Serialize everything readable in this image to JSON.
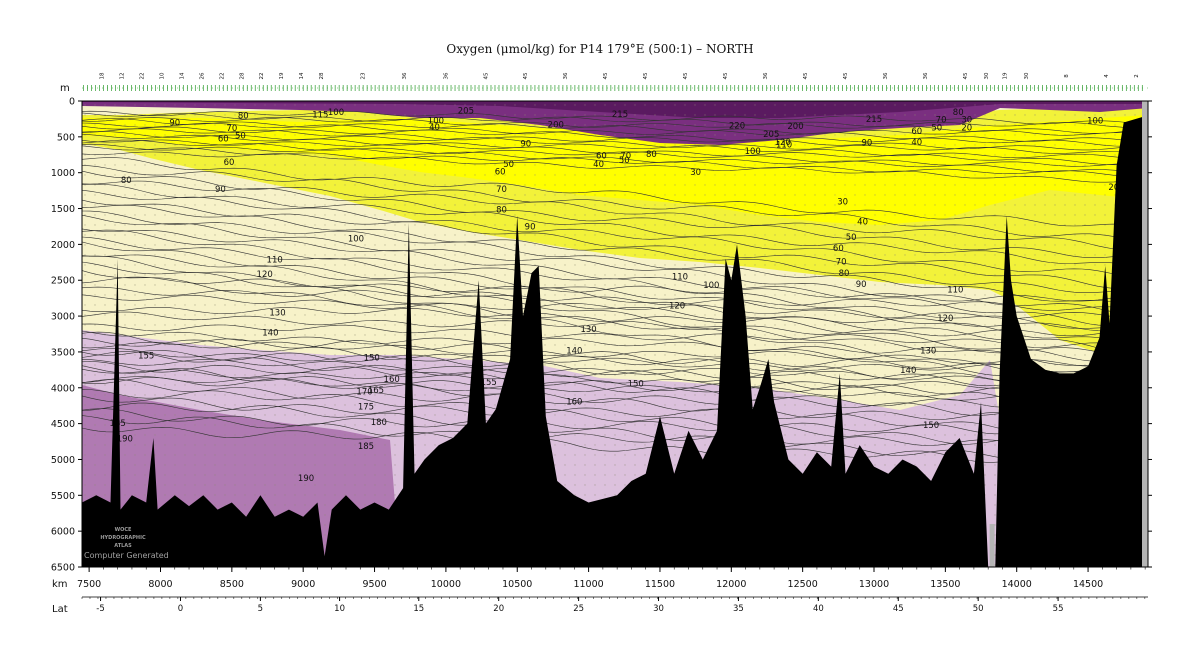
{
  "chart_data": {
    "type": "area",
    "title": "Oxygen (μmol/kg) for P14 179°E (500:1) – NORTH",
    "depth_unit_label": "m",
    "distance_unit_label": "km",
    "lat_label": "Lat",
    "ylim": [
      0,
      6500
    ],
    "xlim": [
      7450,
      14920
    ],
    "y_ticks": [
      0,
      500,
      1000,
      1500,
      2000,
      2500,
      3000,
      3500,
      4000,
      4500,
      5000,
      5500,
      6000,
      6500
    ],
    "x_ticks": [
      7500,
      8000,
      8500,
      9000,
      9500,
      10000,
      10500,
      11000,
      11500,
      12000,
      12500,
      13000,
      13500,
      14000,
      14500
    ],
    "lat_ticks": [
      {
        "km": 7580,
        "label": "-5"
      },
      {
        "km": 8140,
        "label": "0"
      },
      {
        "km": 8700,
        "label": "5"
      },
      {
        "km": 9255,
        "label": "10"
      },
      {
        "km": 9810,
        "label": "15"
      },
      {
        "km": 10370,
        "label": "20"
      },
      {
        "km": 10930,
        "label": "25"
      },
      {
        "km": 11490,
        "label": "30"
      },
      {
        "km": 12050,
        "label": "35"
      },
      {
        "km": 12610,
        "label": "40"
      },
      {
        "km": 13170,
        "label": "45"
      },
      {
        "km": 13730,
        "label": "50"
      },
      {
        "km": 14290,
        "label": "55"
      }
    ],
    "station_labels": [
      {
        "km": 7600,
        "label": "18"
      },
      {
        "km": 7740,
        "label": "12"
      },
      {
        "km": 7880,
        "label": "22"
      },
      {
        "km": 8020,
        "label": "10"
      },
      {
        "km": 8160,
        "label": "14"
      },
      {
        "km": 8300,
        "label": "26"
      },
      {
        "km": 8440,
        "label": "22"
      },
      {
        "km": 8580,
        "label": "28"
      },
      {
        "km": 8720,
        "label": "22"
      },
      {
        "km": 8860,
        "label": "19"
      },
      {
        "km": 9000,
        "label": "14"
      },
      {
        "km": 9140,
        "label": "28"
      },
      {
        "km": 9430,
        "label": "23"
      },
      {
        "km": 9720,
        "label": "36"
      },
      {
        "km": 10010,
        "label": "36"
      },
      {
        "km": 10290,
        "label": "45"
      },
      {
        "km": 10570,
        "label": "45"
      },
      {
        "km": 10850,
        "label": "36"
      },
      {
        "km": 11130,
        "label": "45"
      },
      {
        "km": 11410,
        "label": "45"
      },
      {
        "km": 11690,
        "label": "45"
      },
      {
        "km": 11970,
        "label": "45"
      },
      {
        "km": 12250,
        "label": "36"
      },
      {
        "km": 12530,
        "label": "45"
      },
      {
        "km": 12810,
        "label": "45"
      },
      {
        "km": 13090,
        "label": "36"
      },
      {
        "km": 13370,
        "label": "36"
      },
      {
        "km": 13650,
        "label": "45"
      },
      {
        "km": 13800,
        "label": "30"
      },
      {
        "km": 13930,
        "label": "19"
      },
      {
        "km": 14080,
        "label": "30"
      },
      {
        "km": 14360,
        "label": "8"
      },
      {
        "km": 14640,
        "label": "4"
      },
      {
        "km": 14850,
        "label": "2"
      }
    ],
    "contour_labels": [
      {
        "km": 7760,
        "depth": 1100,
        "value": "80"
      },
      {
        "km": 8100,
        "depth": 300,
        "value": "90"
      },
      {
        "km": 8580,
        "depth": 200,
        "value": "80"
      },
      {
        "km": 8500,
        "depth": 380,
        "value": "70"
      },
      {
        "km": 8560,
        "depth": 480,
        "value": "50"
      },
      {
        "km": 8440,
        "depth": 520,
        "value": "60"
      },
      {
        "km": 8480,
        "depth": 850,
        "value": "60"
      },
      {
        "km": 8420,
        "depth": 1230,
        "value": "90"
      },
      {
        "km": 9120,
        "depth": 190,
        "value": "115"
      },
      {
        "km": 9230,
        "depth": 150,
        "value": "100"
      },
      {
        "km": 9930,
        "depth": 270,
        "value": "100"
      },
      {
        "km": 9920,
        "depth": 360,
        "value": "40"
      },
      {
        "km": 10140,
        "depth": 130,
        "value": "205"
      },
      {
        "km": 10770,
        "depth": 330,
        "value": "200"
      },
      {
        "km": 11220,
        "depth": 180,
        "value": "215"
      },
      {
        "km": 10560,
        "depth": 590,
        "value": "90"
      },
      {
        "km": 11090,
        "depth": 760,
        "value": "60"
      },
      {
        "km": 11260,
        "depth": 760,
        "value": "70"
      },
      {
        "km": 11250,
        "depth": 820,
        "value": "50"
      },
      {
        "km": 11440,
        "depth": 740,
        "value": "80"
      },
      {
        "km": 11070,
        "depth": 880,
        "value": "40"
      },
      {
        "km": 10440,
        "depth": 880,
        "value": "50"
      },
      {
        "km": 10380,
        "depth": 980,
        "value": "60"
      },
      {
        "km": 10390,
        "depth": 1230,
        "value": "70"
      },
      {
        "km": 10390,
        "depth": 1510,
        "value": "80"
      },
      {
        "km": 10590,
        "depth": 1750,
        "value": "90"
      },
      {
        "km": 11750,
        "depth": 990,
        "value": "30"
      },
      {
        "km": 12040,
        "depth": 340,
        "value": "220"
      },
      {
        "km": 12280,
        "depth": 460,
        "value": "205"
      },
      {
        "km": 12450,
        "depth": 350,
        "value": "200"
      },
      {
        "km": 12150,
        "depth": 700,
        "value": "100"
      },
      {
        "km": 12370,
        "depth": 610,
        "value": "110"
      },
      {
        "km": 12360,
        "depth": 570,
        "value": "120"
      },
      {
        "km": 13000,
        "depth": 250,
        "value": "215"
      },
      {
        "km": 12950,
        "depth": 580,
        "value": "90"
      },
      {
        "km": 13300,
        "depth": 420,
        "value": "60"
      },
      {
        "km": 13300,
        "depth": 570,
        "value": "40"
      },
      {
        "km": 13470,
        "depth": 260,
        "value": "70"
      },
      {
        "km": 13440,
        "depth": 370,
        "value": "50"
      },
      {
        "km": 13590,
        "depth": 150,
        "value": "80"
      },
      {
        "km": 13650,
        "depth": 260,
        "value": "30"
      },
      {
        "km": 13650,
        "depth": 370,
        "value": "20"
      },
      {
        "km": 14550,
        "depth": 270,
        "value": "100"
      },
      {
        "km": 14680,
        "depth": 1200,
        "value": "20"
      },
      {
        "km": 12780,
        "depth": 1400,
        "value": "30"
      },
      {
        "km": 12920,
        "depth": 1680,
        "value": "40"
      },
      {
        "km": 12840,
        "depth": 1900,
        "value": "50"
      },
      {
        "km": 12750,
        "depth": 2050,
        "value": "60"
      },
      {
        "km": 12770,
        "depth": 2240,
        "value": "70"
      },
      {
        "km": 12790,
        "depth": 2400,
        "value": "80"
      },
      {
        "km": 12910,
        "depth": 2550,
        "value": "90"
      },
      {
        "km": 9370,
        "depth": 1920,
        "value": "100"
      },
      {
        "km": 8800,
        "depth": 2210,
        "value": "110"
      },
      {
        "km": 8730,
        "depth": 2410,
        "value": "120"
      },
      {
        "km": 8820,
        "depth": 2950,
        "value": "130"
      },
      {
        "km": 8770,
        "depth": 3230,
        "value": "140"
      },
      {
        "km": 7900,
        "depth": 3550,
        "value": "155"
      },
      {
        "km": 9480,
        "depth": 3580,
        "value": "150"
      },
      {
        "km": 9620,
        "depth": 3880,
        "value": "160"
      },
      {
        "km": 9510,
        "depth": 4030,
        "value": "165"
      },
      {
        "km": 9430,
        "depth": 4050,
        "value": "170"
      },
      {
        "km": 9440,
        "depth": 4260,
        "value": "175"
      },
      {
        "km": 9530,
        "depth": 4480,
        "value": "180"
      },
      {
        "km": 9440,
        "depth": 4810,
        "value": "185"
      },
      {
        "km": 9020,
        "depth": 5260,
        "value": "190"
      },
      {
        "km": 7700,
        "depth": 4490,
        "value": "185"
      },
      {
        "km": 7750,
        "depth": 4710,
        "value": "190"
      },
      {
        "km": 10300,
        "depth": 3920,
        "value": "155"
      },
      {
        "km": 11640,
        "depth": 2450,
        "value": "110"
      },
      {
        "km": 11620,
        "depth": 2850,
        "value": "120"
      },
      {
        "km": 11860,
        "depth": 2570,
        "value": "100"
      },
      {
        "km": 11000,
        "depth": 3180,
        "value": "130"
      },
      {
        "km": 10900,
        "depth": 3480,
        "value": "140"
      },
      {
        "km": 11330,
        "depth": 3940,
        "value": "150"
      },
      {
        "km": 10900,
        "depth": 4190,
        "value": "160"
      },
      {
        "km": 13570,
        "depth": 2630,
        "value": "110"
      },
      {
        "km": 13500,
        "depth": 3030,
        "value": "120"
      },
      {
        "km": 13380,
        "depth": 3480,
        "value": "130"
      },
      {
        "km": 13240,
        "depth": 3750,
        "value": "140"
      },
      {
        "km": 13400,
        "depth": 4520,
        "value": "150"
      }
    ],
    "watermark": [
      "WOCE",
      "HYDROGRAPHIC",
      "ATLAS",
      "Computer Generated"
    ]
  }
}
